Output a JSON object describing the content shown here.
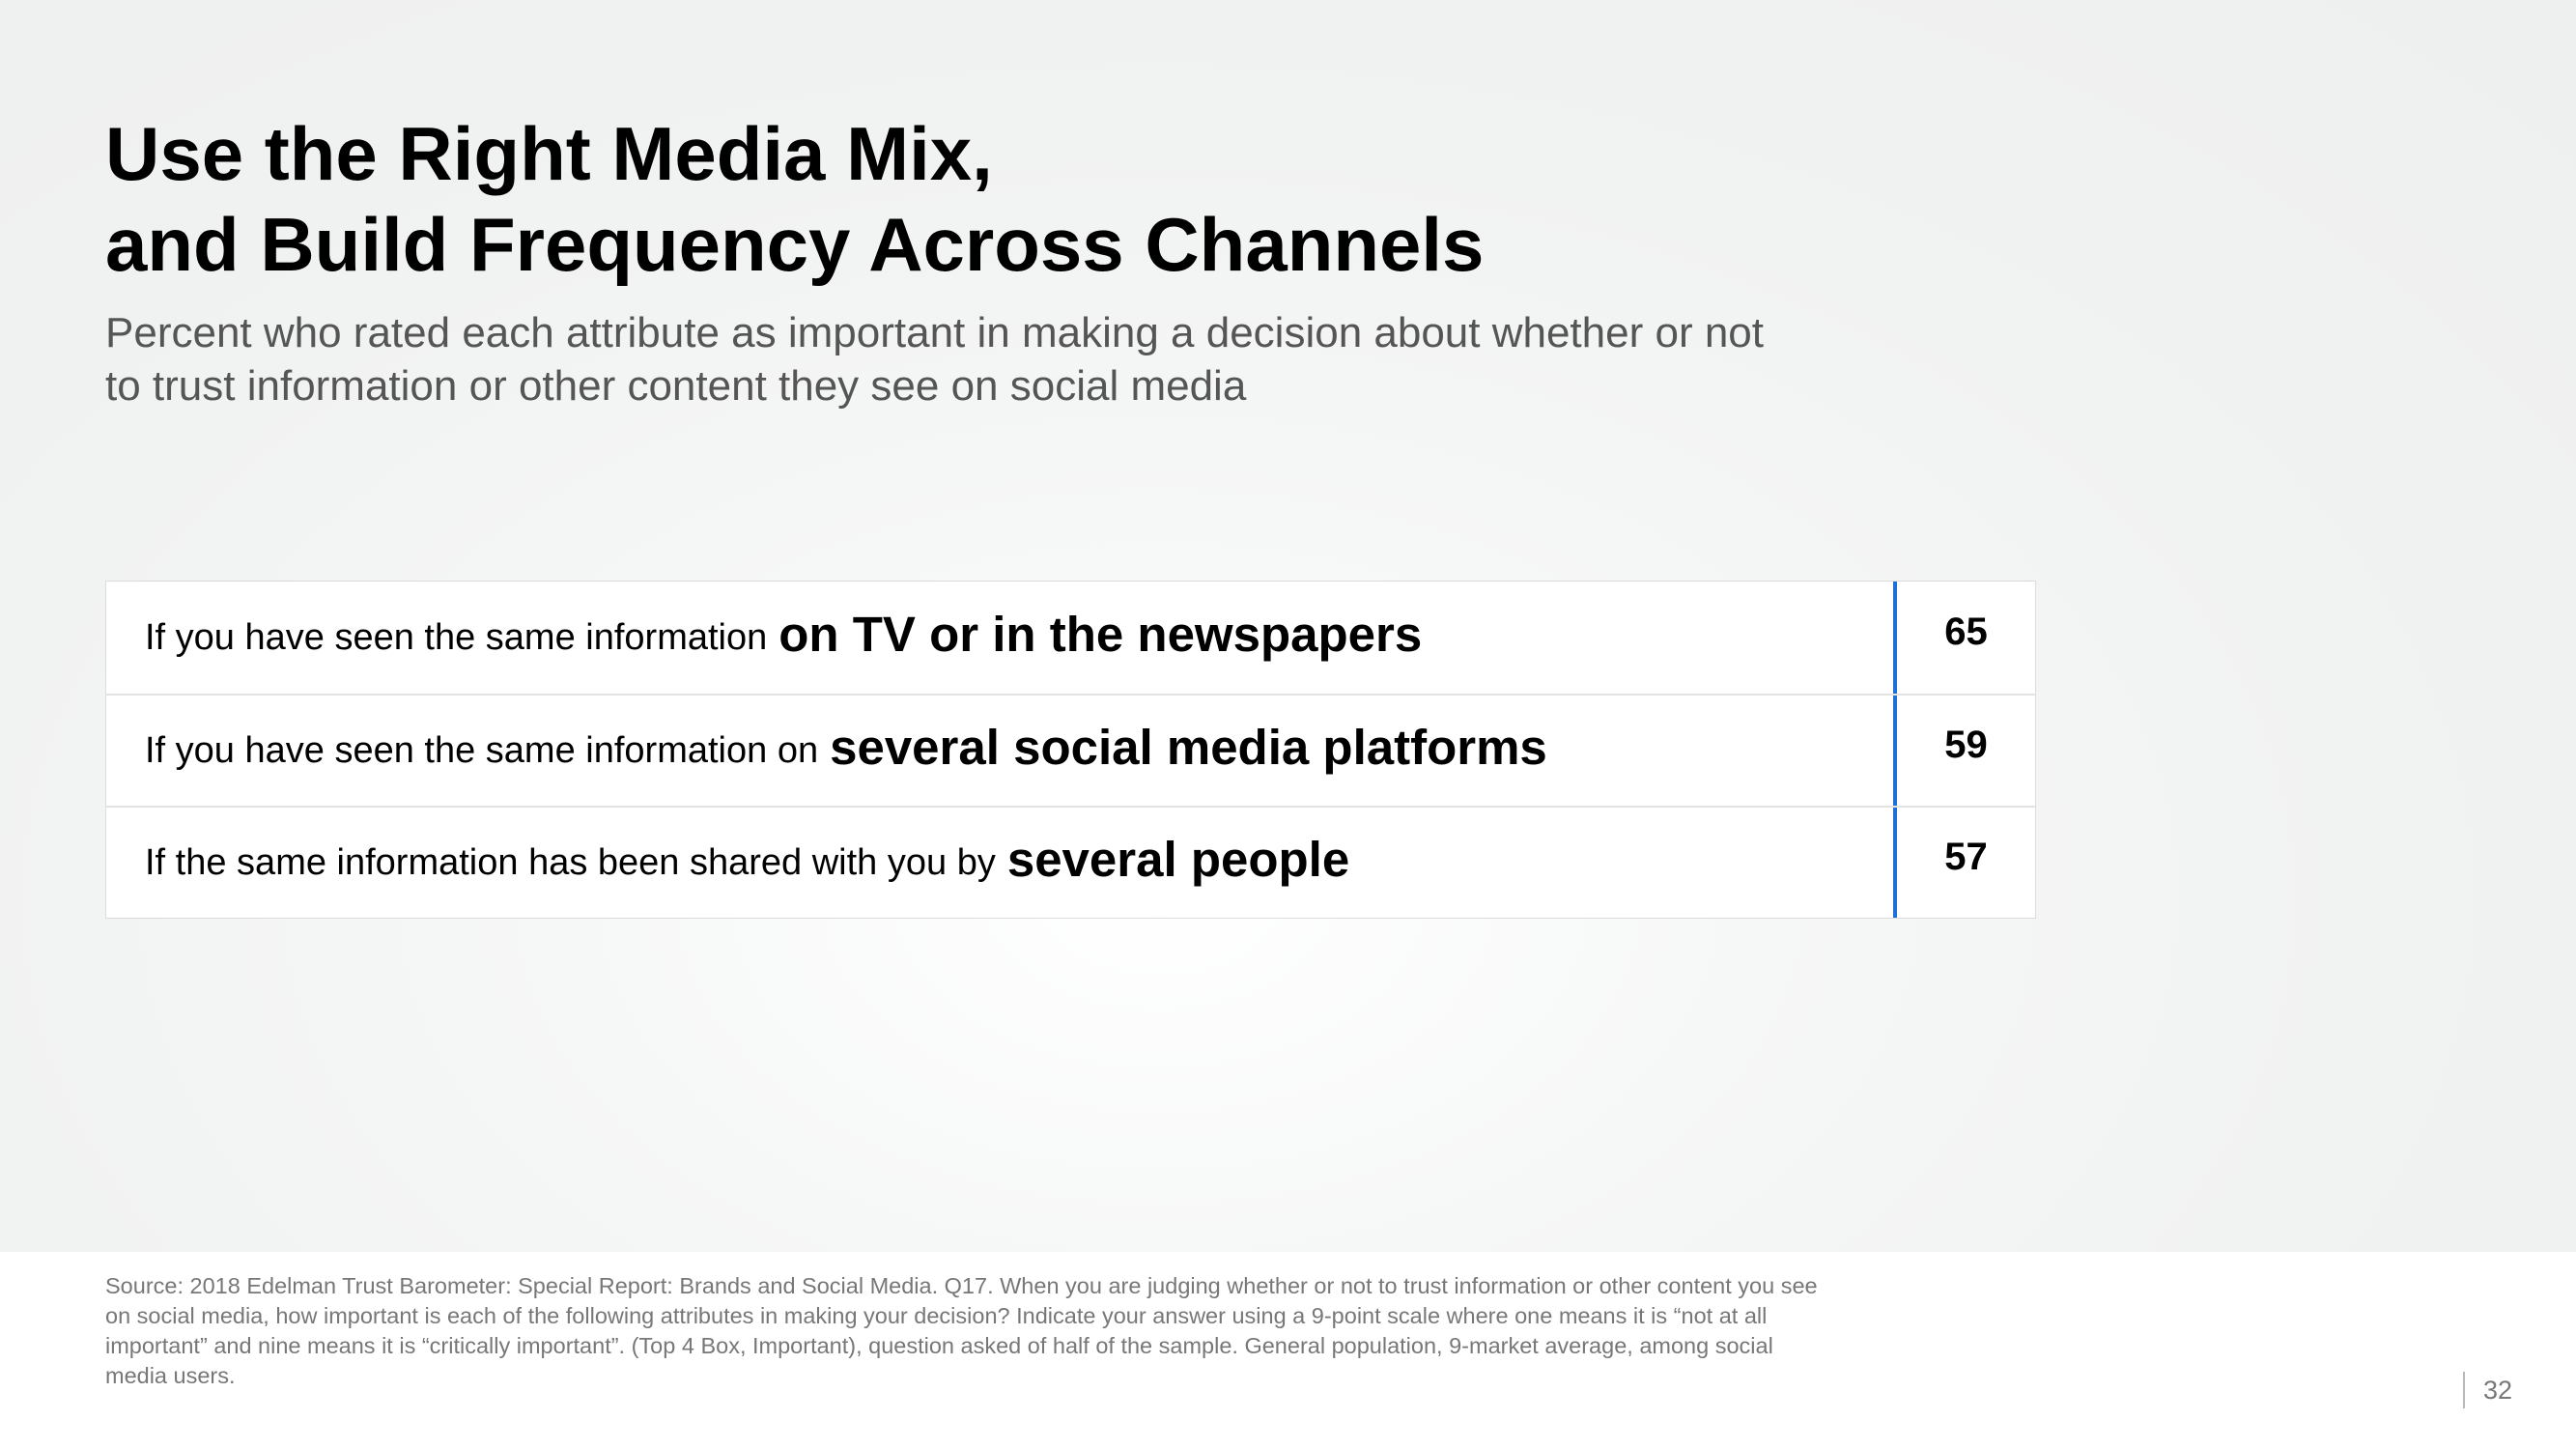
{
  "slide": {
    "title_lines": [
      "Use the Right Media Mix,",
      "and Build Frequency Across Channels"
    ],
    "subtitle_lines": [
      "Percent who rated each attribute as important in making a decision about whether or not",
      "to trust information or other content they see on social media"
    ]
  },
  "table": {
    "rows": [
      {
        "prefix": "If you have seen the same information",
        "emphasis": "on TV or in the newspapers",
        "value": "65"
      },
      {
        "prefix": "If you have seen the same information on",
        "emphasis": "several social media platforms",
        "value": "59"
      },
      {
        "prefix": "If the same information has been shared with you by",
        "emphasis": "several people",
        "value": "57"
      }
    ],
    "accent_color": "#1f6fd6"
  },
  "footer": {
    "source_lines": [
      "Source: 2018 Edelman Trust Barometer: Special Report: Brands and Social Media. Q17. When you are judging whether or not to trust information or other content you see",
      "on social media, how important is each of the following attributes in making your decision? Indicate your answer using a 9-point scale where one means it is “not at all",
      "important” and nine means it is “critically important”. (Top 4 Box, Important), question asked of half of the sample. General population, 9-market average, among social",
      "media users."
    ],
    "page_number": "32"
  }
}
